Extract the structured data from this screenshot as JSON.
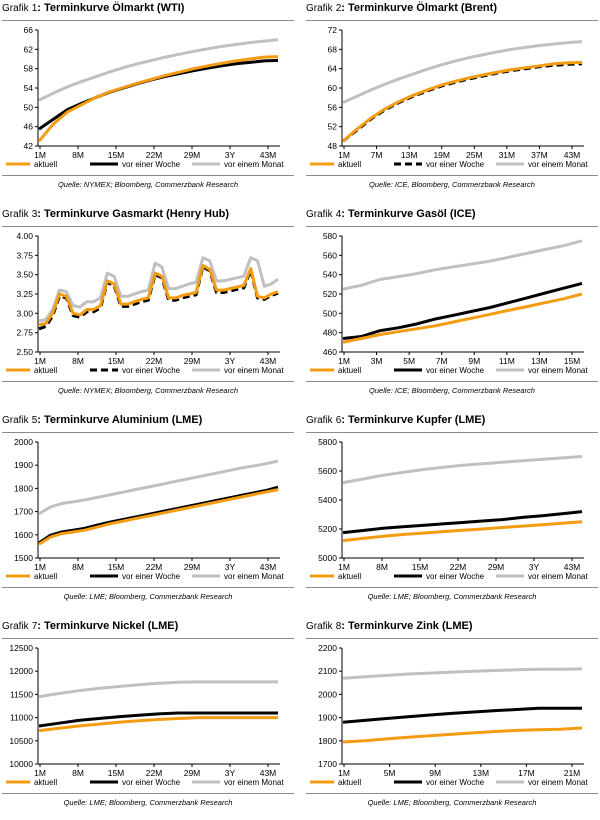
{
  "colors": {
    "aktuell": "#f39c12",
    "woche": "#000000",
    "monat": "#c0c0c0"
  },
  "legend": {
    "aktuell": "aktuell",
    "woche": "vor einer Woche",
    "monat": "vor einem Monat"
  },
  "chart_data": [
    {
      "type": "line",
      "prefix": "Grafik",
      "num": "1",
      "title": "Terminkurve Ölmarkt (WTI)",
      "source": "Quelle: NYMEX; Bloomberg, Commerzbank Research",
      "yticks": [
        "42",
        "46",
        "50",
        "54",
        "58",
        "62",
        "66"
      ],
      "ylim": [
        42,
        66
      ],
      "xticks": [
        "1M",
        "8M",
        "15M",
        "22M",
        "29M",
        "3Y",
        "43M"
      ],
      "n": 48,
      "series": [
        {
          "key": "aktuell",
          "dashed": false,
          "values": [
            43,
            46.5,
            49,
            50.5,
            52,
            53.2,
            54.1,
            55,
            55.8,
            56.6,
            57.3,
            58,
            58.6,
            59.1,
            59.6,
            60,
            60.4,
            60.5
          ]
        },
        {
          "key": "woche",
          "dashed": false,
          "values": [
            45.5,
            47.5,
            49.5,
            50.8,
            52,
            53.1,
            54,
            54.9,
            55.7,
            56.4,
            57,
            57.6,
            58.1,
            58.6,
            59,
            59.3,
            59.6,
            59.7
          ]
        },
        {
          "key": "monat",
          "dashed": false,
          "values": [
            51.5,
            52.9,
            54.2,
            55.3,
            56.3,
            57.3,
            58.2,
            59,
            59.7,
            60.4,
            61,
            61.6,
            62.1,
            62.6,
            63,
            63.4,
            63.7,
            64
          ]
        }
      ]
    },
    {
      "type": "line",
      "prefix": "Grafik",
      "num": "2",
      "title": "Terminkurve Ölmarkt (Brent)",
      "source": "Quelle: ICE, Bloomberg, Commerzbank Research",
      "yticks": [
        "48",
        "52",
        "56",
        "60",
        "64",
        "68",
        "72"
      ],
      "ylim": [
        48,
        72
      ],
      "xticks": [
        "1M",
        "7M",
        "13M",
        "19M",
        "25M",
        "31M",
        "37M",
        "43M"
      ],
      "n": 48,
      "series": [
        {
          "key": "aktuell",
          "dashed": false,
          "values": [
            49,
            51.5,
            53.8,
            55.7,
            57.2,
            58.5,
            59.6,
            60.6,
            61.4,
            62.1,
            62.7,
            63.3,
            63.8,
            64.2,
            64.6,
            65,
            65.2,
            65.3
          ]
        },
        {
          "key": "woche",
          "dashed": true,
          "values": [
            49,
            51.3,
            53.6,
            55.5,
            57,
            58.3,
            59.4,
            60.4,
            61.2,
            61.9,
            62.5,
            63.1,
            63.6,
            64,
            64.4,
            64.7,
            64.9,
            65
          ]
        },
        {
          "key": "monat",
          "dashed": false,
          "values": [
            57,
            58.3,
            59.6,
            60.8,
            61.9,
            62.9,
            63.9,
            64.8,
            65.6,
            66.3,
            66.9,
            67.5,
            68,
            68.4,
            68.8,
            69.1,
            69.4,
            69.6
          ]
        }
      ]
    },
    {
      "type": "line",
      "prefix": "Grafik",
      "num": "3",
      "title": "Terminkurve Gasmarkt (Henry Hub)",
      "source": "Quelle: NYMEX; Bloomberg, Commerzbank Research",
      "yticks": [
        "2.50",
        "2.75",
        "3.00",
        "3.25",
        "3.50",
        "3.75",
        "4.00"
      ],
      "ylim": [
        2.5,
        4.0
      ],
      "xticks": [
        "1M",
        "8M",
        "15M",
        "22M",
        "29M",
        "3Y",
        "43M"
      ],
      "n": 48,
      "series": [
        {
          "key": "aktuell",
          "dashed": false,
          "values": [
            2.85,
            2.87,
            3.0,
            3.25,
            3.22,
            3.0,
            2.98,
            3.05,
            3.05,
            3.1,
            3.42,
            3.38,
            3.12,
            3.12,
            3.15,
            3.18,
            3.2,
            3.52,
            3.48,
            3.2,
            3.2,
            3.23,
            3.25,
            3.27,
            3.62,
            3.57,
            3.3,
            3.3,
            3.32,
            3.34,
            3.36,
            3.58,
            3.22,
            3.2,
            3.25,
            3.28
          ]
        },
        {
          "key": "woche",
          "dashed": true,
          "values": [
            2.8,
            2.83,
            2.97,
            3.22,
            3.2,
            2.97,
            2.95,
            3.02,
            3.02,
            3.07,
            3.4,
            3.36,
            3.09,
            3.09,
            3.12,
            3.15,
            3.17,
            3.5,
            3.46,
            3.17,
            3.17,
            3.2,
            3.22,
            3.24,
            3.6,
            3.55,
            3.27,
            3.27,
            3.29,
            3.31,
            3.33,
            3.56,
            3.2,
            3.18,
            3.23,
            3.26
          ]
        },
        {
          "key": "monat",
          "dashed": false,
          "values": [
            2.9,
            2.92,
            3.05,
            3.3,
            3.28,
            3.1,
            3.08,
            3.15,
            3.15,
            3.2,
            3.52,
            3.48,
            3.22,
            3.22,
            3.25,
            3.28,
            3.3,
            3.65,
            3.6,
            3.32,
            3.32,
            3.35,
            3.38,
            3.4,
            3.72,
            3.68,
            3.42,
            3.42,
            3.44,
            3.46,
            3.48,
            3.72,
            3.68,
            3.35,
            3.38,
            3.44
          ]
        }
      ]
    },
    {
      "type": "line",
      "prefix": "Grafik",
      "num": "4",
      "title": "Terminkurve Gasöl (ICE)",
      "source": "Quelle: ICE; Bloomberg, Commerzbank Research",
      "yticks": [
        "460",
        "480",
        "500",
        "520",
        "540",
        "560",
        "580"
      ],
      "ylim": [
        460,
        580
      ],
      "xticks": [
        "1M",
        "3M",
        "5M",
        "7M",
        "9M",
        "11M",
        "13M",
        "15M"
      ],
      "n": 15,
      "series": [
        {
          "key": "aktuell",
          "dashed": false,
          "values": [
            470,
            474,
            478,
            481,
            484,
            487,
            491,
            495,
            499,
            503,
            507,
            511,
            515,
            520
          ]
        },
        {
          "key": "woche",
          "dashed": false,
          "values": [
            474,
            476,
            482,
            485,
            489,
            494,
            498,
            502,
            506,
            511,
            516,
            521,
            526,
            531
          ]
        },
        {
          "key": "monat",
          "dashed": false,
          "values": [
            525,
            529,
            535,
            538,
            541,
            545,
            548,
            551,
            554,
            558,
            562,
            566,
            570,
            575
          ]
        }
      ]
    },
    {
      "type": "line",
      "prefix": "Grafik",
      "num": "5",
      "title": " Terminkurve Aluminium (LME)",
      "source": "Quelle: LME; Bloomberg, Commerzbank Research",
      "yticks": [
        "1500",
        "1600",
        "1700",
        "1800",
        "1900",
        "2000"
      ],
      "ylim": [
        1500,
        2000
      ],
      "xticks": [
        "1M",
        "8M",
        "15M",
        "22M",
        "29M",
        "3Y",
        "43M"
      ],
      "n": 48,
      "series": [
        {
          "key": "aktuell",
          "dashed": false,
          "values": [
            1560,
            1590,
            1605,
            1612,
            1620,
            1632,
            1645,
            1655,
            1665,
            1675,
            1685,
            1695,
            1705,
            1715,
            1725,
            1735,
            1745,
            1755,
            1765,
            1775,
            1785,
            1795
          ]
        },
        {
          "key": "woche",
          "dashed": false,
          "values": [
            1565,
            1598,
            1612,
            1620,
            1628,
            1640,
            1652,
            1662,
            1672,
            1682,
            1692,
            1702,
            1712,
            1722,
            1732,
            1742,
            1752,
            1762,
            1772,
            1782,
            1792,
            1805
          ]
        },
        {
          "key": "monat",
          "dashed": false,
          "values": [
            1690,
            1720,
            1735,
            1742,
            1750,
            1760,
            1770,
            1780,
            1790,
            1800,
            1810,
            1820,
            1830,
            1840,
            1850,
            1860,
            1870,
            1880,
            1890,
            1898,
            1907,
            1918
          ]
        }
      ]
    },
    {
      "type": "line",
      "prefix": "Grafik",
      "num": "6",
      "title": "Terminkurve Kupfer (LME)",
      "source": "Quelle: LME; Bloomberg, Commerzbank Research",
      "yticks": [
        "5000",
        "5200",
        "5400",
        "5600",
        "5800"
      ],
      "ylim": [
        5000,
        5800
      ],
      "xticks": [
        "1M",
        "8M",
        "15M",
        "22M",
        "29M",
        "3Y",
        "43M"
      ],
      "n": 48,
      "series": [
        {
          "key": "aktuell",
          "dashed": false,
          "values": [
            5120,
            5135,
            5150,
            5162,
            5172,
            5182,
            5192,
            5200,
            5210,
            5220,
            5230,
            5240,
            5250
          ]
        },
        {
          "key": "woche",
          "dashed": false,
          "values": [
            5175,
            5190,
            5205,
            5215,
            5225,
            5235,
            5245,
            5255,
            5265,
            5280,
            5292,
            5305,
            5320
          ]
        },
        {
          "key": "monat",
          "dashed": false,
          "values": [
            5520,
            5545,
            5570,
            5590,
            5610,
            5625,
            5640,
            5650,
            5660,
            5670,
            5680,
            5690,
            5700
          ]
        }
      ]
    },
    {
      "type": "line",
      "prefix": "Grafik",
      "num": "7",
      "title": "Terminkurve Nickel (LME)",
      "source": "Quelle: LME; Bloomberg, Commerzbank Research",
      "yticks": [
        "10000",
        "10500",
        "11000",
        "11500",
        "12000",
        "12500"
      ],
      "ylim": [
        10000,
        12500
      ],
      "xticks": [
        "1M",
        "8M",
        "15M",
        "22M",
        "29M",
        "3Y",
        "43M"
      ],
      "n": 48,
      "series": [
        {
          "key": "aktuell",
          "dashed": false,
          "values": [
            10720,
            10770,
            10820,
            10860,
            10900,
            10930,
            10960,
            10980,
            11000,
            11000,
            11000,
            11000,
            11000
          ]
        },
        {
          "key": "woche",
          "dashed": false,
          "values": [
            10820,
            10880,
            10940,
            10980,
            11020,
            11050,
            11080,
            11100,
            11100,
            11100,
            11100,
            11100,
            11100
          ]
        },
        {
          "key": "monat",
          "dashed": false,
          "values": [
            11450,
            11520,
            11580,
            11630,
            11670,
            11710,
            11740,
            11760,
            11770,
            11770,
            11770,
            11770,
            11770
          ]
        }
      ]
    },
    {
      "type": "line",
      "prefix": "Grafik",
      "num": "8",
      "title": "Terminkurve Zink (LME)",
      "source": "Quelle: LME; Bloomberg, Commerzbank Research",
      "yticks": [
        "1700",
        "1800",
        "1900",
        "2000",
        "2100",
        "2200"
      ],
      "ylim": [
        1700,
        2200
      ],
      "xticks": [
        "1M",
        "5M",
        "9M",
        "13M",
        "17M",
        "21M"
      ],
      "n": 24,
      "series": [
        {
          "key": "aktuell",
          "dashed": false,
          "values": [
            1795,
            1800,
            1808,
            1815,
            1822,
            1828,
            1834,
            1840,
            1845,
            1848,
            1850,
            1855
          ]
        },
        {
          "key": "woche",
          "dashed": false,
          "values": [
            1880,
            1888,
            1896,
            1904,
            1911,
            1918,
            1924,
            1930,
            1935,
            1940,
            1940,
            1940
          ]
        },
        {
          "key": "monat",
          "dashed": false,
          "values": [
            2070,
            2076,
            2082,
            2088,
            2092,
            2096,
            2100,
            2103,
            2106,
            2108,
            2108,
            2110
          ]
        }
      ]
    }
  ]
}
